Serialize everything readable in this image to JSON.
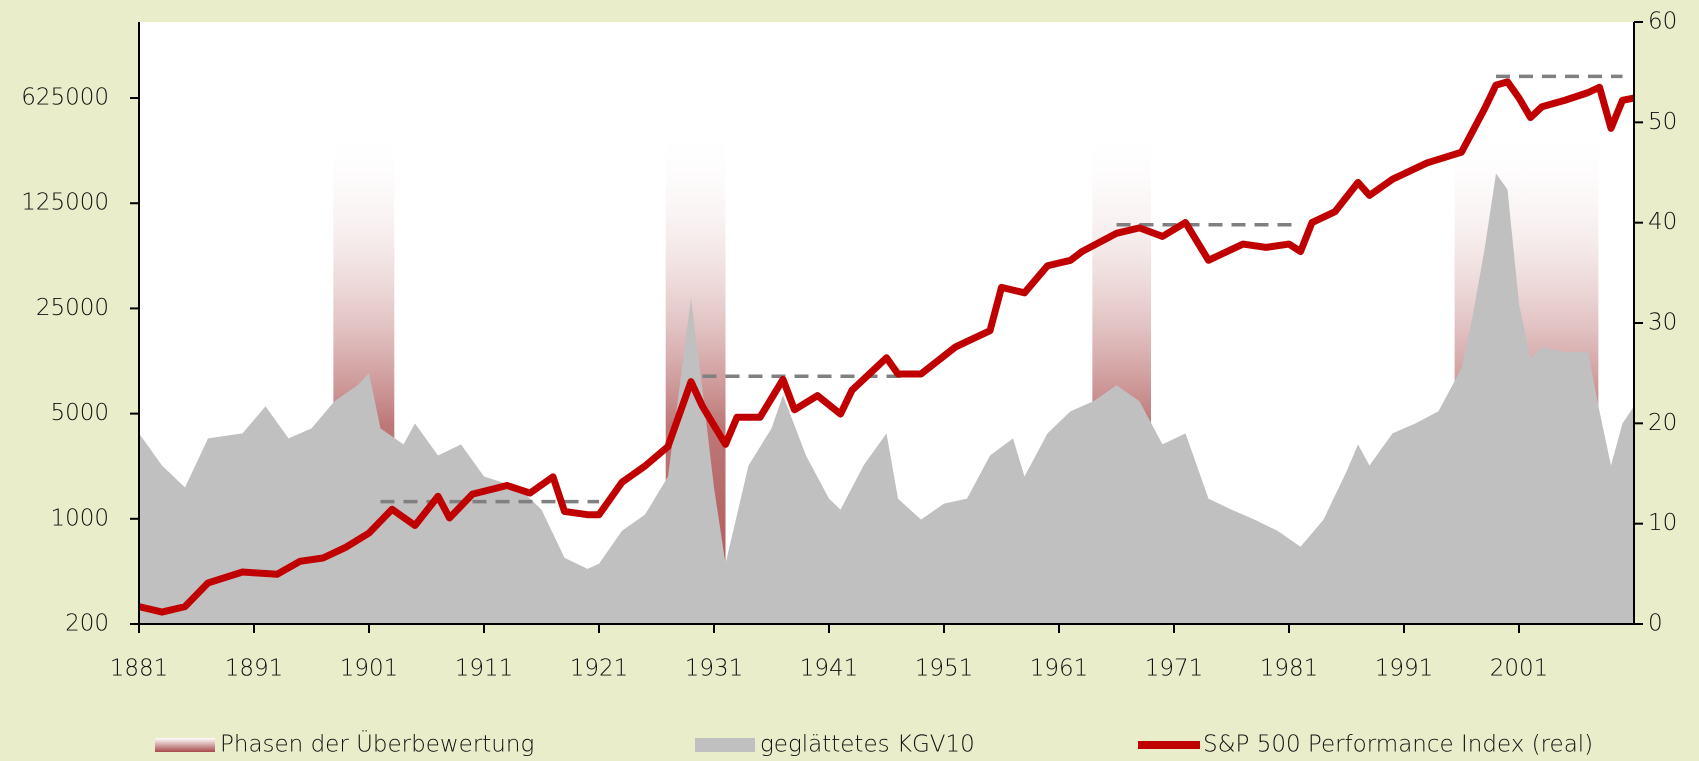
{
  "chart_data": {
    "type": "line",
    "xlim": [
      1881,
      2011
    ],
    "xticks": [
      1881,
      1891,
      1901,
      1911,
      1921,
      1931,
      1941,
      1951,
      1961,
      1971,
      1981,
      1991,
      2001
    ],
    "ylim": [
      200,
      2000000
    ],
    "ylog": true,
    "yticks": [
      200,
      1000,
      5000,
      25000,
      125000,
      625000
    ],
    "y2lim": [
      0,
      60
    ],
    "y2ticks": [
      0,
      10,
      20,
      30,
      40,
      50,
      60
    ],
    "phases": {
      "name": "Phasen der Überbewertung",
      "color": "#a84a4a",
      "ranges": [
        [
          1897.9,
          1903.2
        ],
        [
          1926.8,
          1932
        ],
        [
          1963.9,
          1969
        ],
        [
          1995.4,
          2007.9
        ]
      ]
    },
    "reference_lines": {
      "color": "#808080",
      "lines": [
        {
          "start": 1902,
          "end": 1921,
          "value": 1300
        },
        {
          "start": 1930,
          "end": 1948,
          "value": 8860
        },
        {
          "start": 1966,
          "end": 1982,
          "value": 90000
        },
        {
          "start": 1999,
          "end": 2010,
          "value": 870000
        }
      ]
    },
    "series": [
      {
        "name": "geglättetes KGV10",
        "color": "#c0c0c0",
        "axis": "y2",
        "kind": "area",
        "x": [
          1881,
          1883,
          1885,
          1887,
          1890,
          1892,
          1894,
          1896,
          1898,
          1900,
          1901,
          1902,
          1904,
          1905,
          1907,
          1909,
          1911,
          1914,
          1916,
          1918,
          1920,
          1921,
          1923,
          1925,
          1927,
          1929,
          1930,
          1931,
          1932,
          1934,
          1936,
          1937,
          1939,
          1941,
          1942,
          1944,
          1946,
          1947,
          1949,
          1951,
          1953,
          1955,
          1957,
          1958,
          1960,
          1962,
          1964,
          1966,
          1968,
          1970,
          1972,
          1974,
          1976,
          1978,
          1980,
          1982,
          1984,
          1986,
          1987,
          1988,
          1990,
          1992,
          1994,
          1996,
          1997,
          1998,
          1999,
          2000,
          2001,
          2002,
          2003,
          2005,
          2007,
          2008,
          2009,
          2010,
          2011
        ],
        "values": [
          19,
          15.8,
          13.6,
          18.5,
          19,
          21.7,
          18.5,
          19.5,
          22.2,
          23.8,
          25,
          19.5,
          17.9,
          20,
          16.8,
          17.9,
          14.7,
          13.6,
          11.4,
          6.6,
          5.5,
          6,
          9.3,
          10.9,
          14.7,
          32.5,
          23.3,
          13.6,
          6,
          15.8,
          19.5,
          22.8,
          16.8,
          12.5,
          11.4,
          15.8,
          19,
          12.5,
          10.4,
          12,
          12.5,
          16.8,
          18.5,
          14.7,
          19,
          21.2,
          22.2,
          23.8,
          22.2,
          17.9,
          19,
          12.5,
          11.4,
          10.4,
          9.3,
          7.7,
          10.4,
          15.2,
          17.9,
          15.8,
          19,
          20,
          21.2,
          25.5,
          30.9,
          37.3,
          44.9,
          43.3,
          31.9,
          26.5,
          27.6,
          27.1,
          27.1,
          21.2,
          15.8,
          20,
          21.7
        ]
      },
      {
        "name": "S&P 500 Performance Index (real)",
        "color": "#c00000",
        "axis": "y",
        "kind": "line",
        "x": [
          1881,
          1883,
          1885,
          1887,
          1890,
          1893,
          1895,
          1897,
          1899,
          1901,
          1903,
          1905,
          1907,
          1908,
          1910,
          1913,
          1915,
          1917,
          1918,
          1920,
          1921,
          1923,
          1925,
          1927,
          1929,
          1930,
          1932,
          1933,
          1935,
          1937,
          1938,
          1940,
          1942,
          1943,
          1946,
          1947,
          1949,
          1952,
          1955,
          1956,
          1958,
          1960,
          1962,
          1963,
          1966,
          1968,
          1970,
          1972,
          1974,
          1975,
          1977,
          1979,
          1981,
          1982,
          1983,
          1985,
          1987,
          1988,
          1990,
          1993,
          1996,
          1997,
          1998,
          1999,
          2000,
          2001,
          2002,
          2003,
          2005,
          2007,
          2008,
          2009,
          2010,
          2011
        ],
        "values": [
          261,
          240,
          261,
          375,
          443,
          428,
          522,
          549,
          648,
          804,
          1157,
          903,
          1411,
          1013,
          1459,
          1665,
          1483,
          1901,
          1119,
          1065,
          1065,
          1750,
          2243,
          3023,
          8157,
          5577,
          3125,
          4728,
          4728,
          8431,
          5306,
          6585,
          4965,
          7153,
          11747,
          9166,
          9166,
          13867,
          17772,
          34490,
          31738,
          48030,
          52200,
          59650,
          78900,
          85700,
          75200,
          93000,
          52200,
          56700,
          66900,
          63600,
          66900,
          59650,
          93000,
          109800,
          171800,
          140800,
          180500,
          231600,
          273000,
          380000,
          529600,
          762000,
          800800,
          625000,
          463700,
          547000,
          604000,
          678800,
          737000,
          393000,
          604000,
          625000
        ]
      }
    ]
  }
}
